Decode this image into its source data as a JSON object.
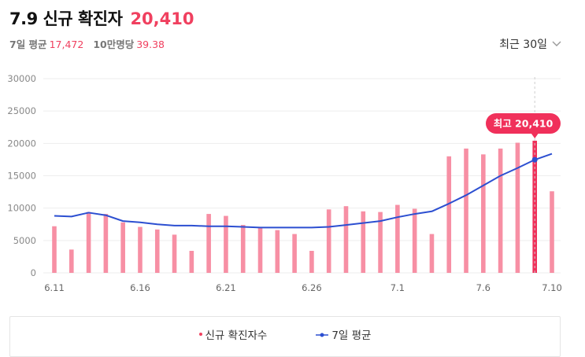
{
  "header": {
    "title": "7.9 신규 확진자",
    "value": "20,410",
    "avg_label": "7일 평균",
    "avg_value": "17,472",
    "per100k_label": "10만명당",
    "per100k_value": "39.38"
  },
  "period": {
    "label": "최근 30일",
    "icon": "chevron-down-icon"
  },
  "colors": {
    "bar": "#f78fa4",
    "highlight": "#f0305a",
    "line": "#2c4fd1",
    "accent": "#f0405f"
  },
  "chart_data": {
    "type": "bar",
    "x": [
      "6.11",
      "6.12",
      "6.13",
      "6.14",
      "6.15",
      "6.16",
      "6.17",
      "6.18",
      "6.19",
      "6.20",
      "6.21",
      "6.22",
      "6.23",
      "6.24",
      "6.25",
      "6.26",
      "6.27",
      "6.28",
      "6.29",
      "6.30",
      "7.1",
      "7.2",
      "7.3",
      "7.4",
      "7.5",
      "7.6",
      "7.7",
      "7.8",
      "7.9",
      "7.10"
    ],
    "xtick_labels": [
      "6.11",
      "6.16",
      "6.21",
      "6.26",
      "7.1",
      "7.6",
      "7.10"
    ],
    "xtick_index": [
      0,
      5,
      10,
      15,
      20,
      25,
      29
    ],
    "series": [
      {
        "name": "신규 확진자수",
        "type": "bar",
        "values": [
          7200,
          3600,
          9400,
          9100,
          7800,
          7100,
          6700,
          5900,
          3400,
          9100,
          8800,
          7400,
          7000,
          6600,
          6000,
          3400,
          9800,
          10300,
          9500,
          9400,
          10500,
          9900,
          6000,
          18000,
          19200,
          18300,
          19200,
          20100,
          20410,
          12600
        ]
      },
      {
        "name": "7일 평균",
        "type": "line",
        "values": [
          8800,
          8700,
          9300,
          8900,
          8000,
          7800,
          7500,
          7300,
          7300,
          7200,
          7200,
          7100,
          7000,
          7000,
          7000,
          7000,
          7100,
          7400,
          7700,
          8000,
          8600,
          9100,
          9500,
          10700,
          12000,
          13500,
          15000,
          16200,
          17472,
          18400
        ]
      }
    ],
    "yticks": [
      0,
      5000,
      10000,
      15000,
      20000,
      25000,
      30000
    ],
    "ylim": [
      0,
      30000
    ],
    "highlight_index": 28,
    "annotation": "최고 20,410",
    "grid": "horizontal",
    "legend_position": "bottom"
  }
}
